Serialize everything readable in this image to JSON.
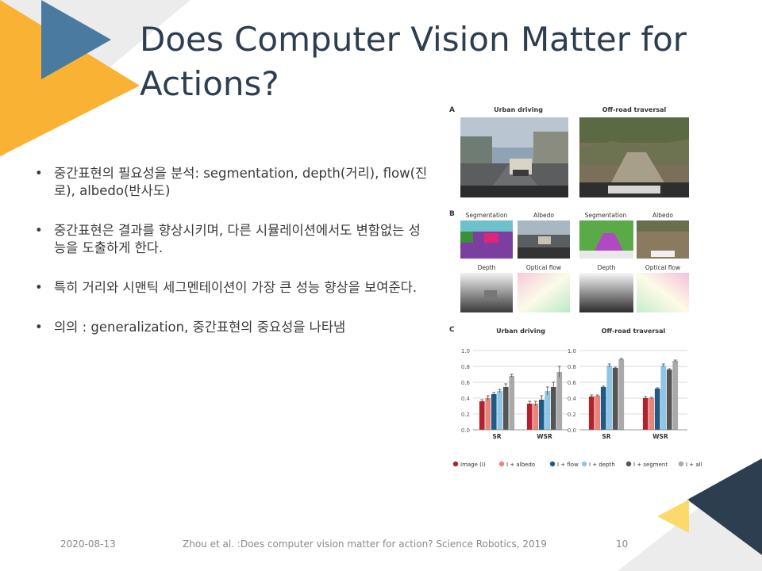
{
  "slide": {
    "title": "Does Computer Vision Matter for Actions?",
    "bullets": [
      "중간표현의 필요성을 분석: segmentation, depth(거리), flow(진로), albedo(반사도)",
      "중간표현은 결과를 향상시키며, 다른 시뮬레이션에서도 변함없는 성능을 도출하게 한다.",
      "특히 거리와 시맨틱 세그멘테이션이 가장 큰 성능 향상을 보여준다.",
      "의의 : generalization,  중간표현의 중요성을 나타냄"
    ],
    "bullet_symbol": "•"
  },
  "figure": {
    "panel_a": {
      "letter": "A",
      "left_caption": "Urban driving",
      "right_caption": "Off-road traversal"
    },
    "panel_b": {
      "letter": "B",
      "labels_top": [
        "Segmentation",
        "Albedo",
        "Segmentation",
        "Albedo"
      ],
      "labels_bottom": [
        "Depth",
        "Optical flow",
        "Depth",
        "Optical flow"
      ]
    },
    "panel_c": {
      "letter": "C"
    }
  },
  "chart_data": [
    {
      "type": "bar",
      "title": "Urban driving",
      "categories": [
        "SR",
        "WSR"
      ],
      "ylim": [
        0,
        1.0
      ],
      "yticks": [
        "0.0",
        "0.2",
        "0.4",
        "0.6",
        "0.8",
        "1.0"
      ],
      "grid": true,
      "series": [
        {
          "name": "Image (I)",
          "color": "#b0232d",
          "values": [
            0.36,
            0.33
          ],
          "errors": [
            0.02,
            0.03
          ]
        },
        {
          "name": "I + albedo",
          "color": "#e8847a",
          "values": [
            0.4,
            0.33
          ],
          "errors": [
            0.03,
            0.03
          ]
        },
        {
          "name": "I + flow",
          "color": "#1f5b85",
          "values": [
            0.45,
            0.38
          ],
          "errors": [
            0.02,
            0.05
          ]
        },
        {
          "name": "I + depth",
          "color": "#8fc5e5",
          "values": [
            0.49,
            0.49
          ],
          "errors": [
            0.02,
            0.05
          ]
        },
        {
          "name": "I + segment",
          "color": "#555555",
          "values": [
            0.54,
            0.54
          ],
          "errors": [
            0.04,
            0.06
          ]
        },
        {
          "name": "I + all",
          "color": "#a9a9a9",
          "values": [
            0.68,
            0.73
          ],
          "errors": [
            0.02,
            0.07
          ]
        }
      ]
    },
    {
      "type": "bar",
      "title": "Off-road traversal",
      "categories": [
        "SR",
        "WSR"
      ],
      "ylim": [
        0,
        1.0
      ],
      "yticks": [
        "0.0",
        "0.2",
        "0.4",
        "0.6",
        "0.8",
        "1.0"
      ],
      "grid": true,
      "series": [
        {
          "name": "Image (I)",
          "color": "#b0232d",
          "values": [
            0.42,
            0.4
          ],
          "errors": [
            0.02,
            0.02
          ]
        },
        {
          "name": "I + albedo",
          "color": "#e8847a",
          "values": [
            0.43,
            0.4
          ],
          "errors": [
            0.01,
            0.01
          ]
        },
        {
          "name": "I + flow",
          "color": "#1f5b85",
          "values": [
            0.54,
            0.52
          ],
          "errors": [
            0.01,
            0.01
          ]
        },
        {
          "name": "I + depth",
          "color": "#8fc5e5",
          "values": [
            0.81,
            0.81
          ],
          "errors": [
            0.02,
            0.02
          ]
        },
        {
          "name": "I + segment",
          "color": "#555555",
          "values": [
            0.78,
            0.76
          ],
          "errors": [
            0.01,
            0.01
          ]
        },
        {
          "name": "I + all",
          "color": "#a9a9a9",
          "values": [
            0.89,
            0.87
          ],
          "errors": [
            0.01,
            0.01
          ]
        }
      ]
    }
  ],
  "footer": {
    "date": "2020-08-13",
    "citation": "Zhou et al. :Does computer vision matter for action? Science Robotics, 2019",
    "page_number": "10"
  },
  "colors": {
    "title": "#2d3e50",
    "accent_yellow": "#f9b233",
    "accent_blue": "#4a7aa0",
    "accent_navy": "#2d3e50",
    "accent_light_yellow": "#fbd96b"
  }
}
